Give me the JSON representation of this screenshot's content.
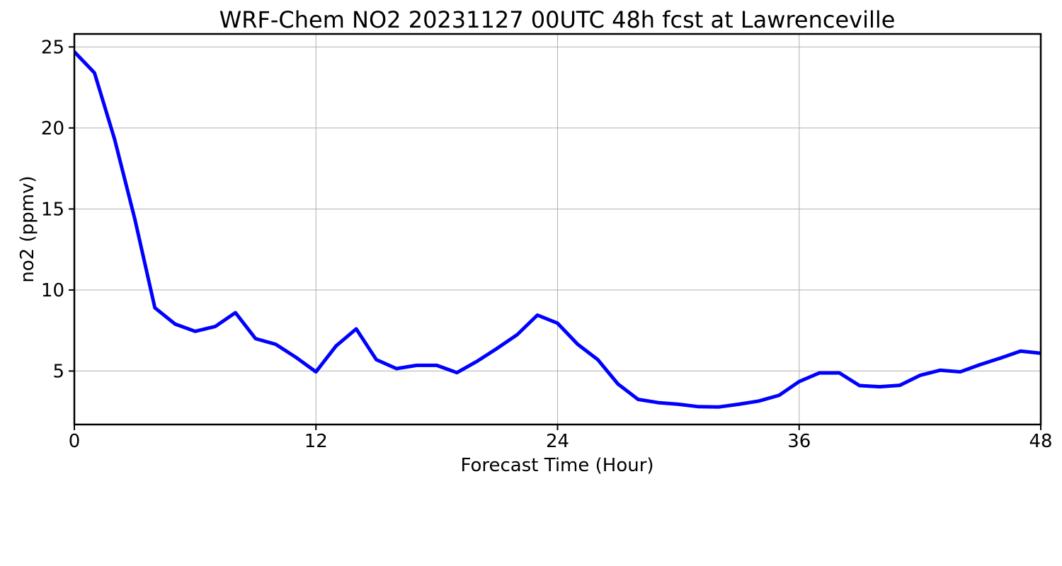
{
  "chart_data": {
    "type": "line",
    "title": "WRF-Chem NO2  20231127 00UTC 48h fcst at Lawrenceville",
    "xlabel": "Forecast Time (Hour)",
    "ylabel": "no2  (ppmv)",
    "xlim": [
      0,
      48
    ],
    "ylim": [
      1.7,
      25.8
    ],
    "xticks": [
      0,
      12,
      24,
      36,
      48
    ],
    "yticks": [
      5,
      10,
      15,
      20,
      25
    ],
    "grid": true,
    "line_color": "#0000ff",
    "series": [
      {
        "x": [
          0,
          1,
          2,
          3,
          4,
          5,
          6,
          7,
          8,
          9,
          10,
          11,
          12,
          13,
          14,
          15,
          16,
          17,
          18,
          19,
          20,
          21,
          22,
          23,
          24,
          25,
          26,
          27,
          28,
          29,
          30,
          31,
          32,
          33,
          34,
          35,
          36,
          37,
          38,
          39,
          40,
          41,
          42,
          43,
          44,
          45,
          46,
          47,
          48
        ],
        "values": [
          24.7,
          23.4,
          19.3,
          14.4,
          8.9,
          7.9,
          7.45,
          7.75,
          8.6,
          7.0,
          6.65,
          5.85,
          4.95,
          6.55,
          7.6,
          5.7,
          5.15,
          5.35,
          5.35,
          4.9,
          5.6,
          6.4,
          7.25,
          8.45,
          7.95,
          6.65,
          5.7,
          4.2,
          3.25,
          3.05,
          2.95,
          2.8,
          2.78,
          2.95,
          3.15,
          3.5,
          4.35,
          4.88,
          4.88,
          4.1,
          4.03,
          4.12,
          4.73,
          5.05,
          4.95,
          5.4,
          5.8,
          6.23,
          6.1
        ]
      }
    ]
  }
}
